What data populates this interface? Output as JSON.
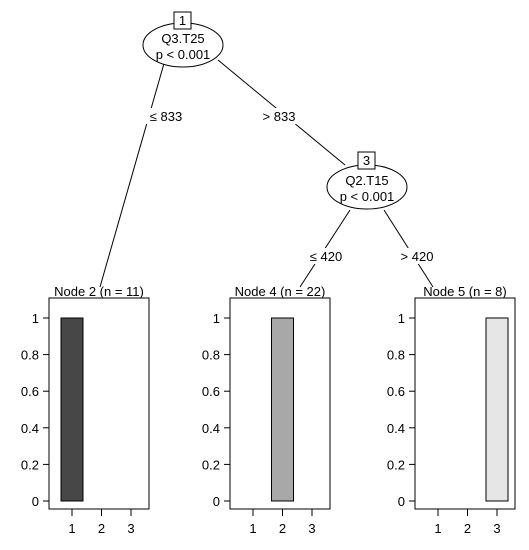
{
  "tree": {
    "inner_nodes": [
      {
        "id": "1",
        "variable": "Q3.T25",
        "pvalue": "p < 0.001"
      },
      {
        "id": "3",
        "variable": "Q2.T15",
        "pvalue": "p < 0.001"
      }
    ],
    "edges": [
      {
        "from": "1",
        "to": "2",
        "label": "≤ 833"
      },
      {
        "from": "1",
        "to": "3",
        "label": "> 833"
      },
      {
        "from": "3",
        "to": "4",
        "label": "≤ 420"
      },
      {
        "from": "3",
        "to": "5",
        "label": "> 420"
      }
    ],
    "terminal_nodes": [
      {
        "id": "2",
        "title": "Node 2 (n = 11)",
        "categories": [
          "1",
          "2",
          "3"
        ],
        "values": [
          1,
          0,
          0
        ],
        "fill": "#474747"
      },
      {
        "id": "4",
        "title": "Node 4 (n = 22)",
        "categories": [
          "1",
          "2",
          "3"
        ],
        "values": [
          0,
          1,
          0
        ],
        "fill": "#a8a8a8"
      },
      {
        "id": "5",
        "title": "Node 5 (n = 8)",
        "categories": [
          "1",
          "2",
          "3"
        ],
        "values": [
          0,
          0,
          1
        ],
        "fill": "#e6e6e6"
      }
    ],
    "y_ticks": [
      "0",
      "0.2",
      "0.4",
      "0.6",
      "0.8",
      "1"
    ],
    "ylim": [
      0,
      1
    ]
  }
}
